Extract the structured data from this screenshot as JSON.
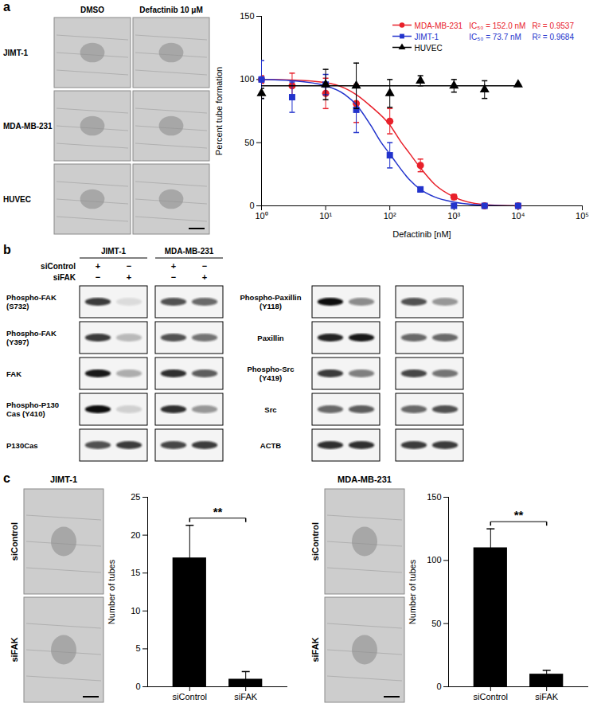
{
  "panel_a_images": {
    "panel": "a",
    "columns": [
      "DMSO",
      "Defactinib 10 μM"
    ],
    "rows": [
      "JIMT-1",
      "MDA-MB-231",
      "HUVEC"
    ]
  },
  "chart_data": [
    {
      "type": "line",
      "xlabel": "Defactinib [nM]",
      "ylabel": "Percent tube formation",
      "log": "x",
      "grid": false,
      "legend": "top-right",
      "xlim": [
        1,
        100000
      ],
      "xticks": [
        {
          "value": 1,
          "label": "10⁰"
        },
        {
          "value": 10,
          "label": "10¹"
        },
        {
          "value": 100,
          "label": "10²"
        },
        {
          "value": 1000,
          "label": "10³"
        },
        {
          "value": 10000,
          "label": "10⁴"
        },
        {
          "value": 100000,
          "label": "10⁵"
        }
      ],
      "ylim": [
        0,
        150
      ],
      "yticks": [
        0,
        50,
        100,
        150
      ],
      "series": [
        {
          "name": "MDA-MB-231",
          "color": "#e8202a",
          "marker": "circle",
          "annotation": [
            "IC₅₀ = 152.0 nM",
            "R² = 0.9537"
          ],
          "x": [
            1,
            3,
            10,
            30,
            100,
            300,
            1000,
            3000,
            10000
          ],
          "values": [
            100,
            95,
            89,
            81,
            67,
            32,
            7,
            0,
            0
          ],
          "error": [
            3,
            10,
            12,
            15,
            10,
            5,
            2,
            0,
            0
          ],
          "curve": {
            "x": [
              1,
              3,
              10,
              20,
              30,
              50,
              100,
              152,
              200,
              300,
              500,
              1000,
              3000,
              10000
            ],
            "values": [
              100,
              99.6,
              97.5,
              93,
              88,
              79,
              64,
              50,
              42,
              30,
              17,
              7,
              1,
              0
            ]
          }
        },
        {
          "name": "JIMT-1",
          "color": "#2233cc",
          "marker": "square",
          "annotation": [
            "IC₅₀ = 73.7 nM",
            "R² = 0.9684"
          ],
          "x": [
            1,
            3,
            10,
            30,
            100,
            300,
            1000,
            3000,
            10000
          ],
          "values": [
            100,
            86,
            96,
            76,
            40,
            13,
            0,
            0,
            0
          ],
          "error": [
            15,
            12,
            8,
            18,
            10,
            2,
            0,
            0,
            0
          ],
          "curve": {
            "x": [
              1,
              3,
              10,
              20,
              30,
              50,
              73.7,
              100,
              200,
              300,
              500,
              1000,
              3000,
              10000
            ],
            "values": [
              100,
              99,
              95,
              88,
              80,
              64,
              50,
              41,
              21,
              13,
              7,
              3,
              0.5,
              0
            ]
          }
        },
        {
          "name": "HUVEC",
          "color": "#000000",
          "marker": "triangle",
          "x": [
            1,
            10,
            30,
            100,
            300,
            1000,
            3000,
            10000
          ],
          "values": [
            89,
            96,
            95,
            89,
            99,
            95,
            92,
            96
          ],
          "error": [
            4,
            12,
            18,
            11,
            4,
            5,
            7,
            0
          ],
          "curve": {
            "x": [
              1,
              10000
            ],
            "values": [
              95,
              95
            ]
          }
        }
      ]
    },
    {
      "type": "bar",
      "categories": [
        "siControl",
        "siFAK"
      ],
      "values": [
        17,
        1
      ],
      "error": [
        4.3,
        1
      ],
      "color": "#000000",
      "ylabel": "Number of tubes",
      "ylim": [
        0,
        25
      ],
      "yticks": [
        0,
        5,
        10,
        15,
        20,
        25
      ],
      "grid": false,
      "significance": "**"
    },
    {
      "type": "bar",
      "categories": [
        "siControl",
        "siFAK"
      ],
      "values": [
        110,
        10
      ],
      "error": [
        15,
        3
      ],
      "color": "#000000",
      "ylabel": "Number of tubes",
      "ylim": [
        0,
        150
      ],
      "yticks": [
        0,
        50,
        100,
        150
      ],
      "grid": false,
      "significance": "**"
    }
  ],
  "panel_b_blots": {
    "panel": "b",
    "cell_lines": [
      "JIMT-1",
      "MDA-MB-231"
    ],
    "conditions": [
      {
        "name": "siControl",
        "marks": [
          "+",
          "−",
          "+",
          "−"
        ]
      },
      {
        "name": "siFAK",
        "marks": [
          "−",
          "+",
          "−",
          "+"
        ]
      }
    ],
    "left": [
      {
        "label": "Phospho-FAK (S732)",
        "intensity": [
          0.8,
          0.1,
          0.7,
          0.6
        ]
      },
      {
        "label": "Phospho-FAK (Y397)",
        "intensity": [
          0.8,
          0.25,
          0.7,
          0.55
        ]
      },
      {
        "label": "FAK",
        "intensity": [
          0.95,
          0.3,
          0.85,
          0.65
        ]
      },
      {
        "label": "Phospho-P130 Cas (Y410)",
        "intensity": [
          1.0,
          0.15,
          0.85,
          0.4
        ]
      },
      {
        "label": "P130Cas",
        "intensity": [
          0.7,
          0.8,
          0.75,
          0.8
        ]
      }
    ],
    "right": [
      {
        "label": "Phospho-Paxillin (Y118)",
        "intensity": [
          1.0,
          0.45,
          0.7,
          0.4
        ]
      },
      {
        "label": "Paxillin",
        "intensity": [
          0.9,
          0.95,
          0.6,
          0.6
        ]
      },
      {
        "label": "Phospho-Src (Y419)",
        "intensity": [
          0.8,
          0.5,
          0.75,
          0.55
        ]
      },
      {
        "label": "Src",
        "intensity": [
          0.6,
          0.65,
          0.6,
          0.7
        ]
      },
      {
        "label": "ACTB",
        "intensity": [
          0.85,
          0.85,
          0.8,
          0.8
        ]
      }
    ]
  },
  "panel_c_images": {
    "panel": "c",
    "groups": [
      {
        "title": "JIMT-1",
        "rows": [
          "siControl",
          "siFAK"
        ]
      },
      {
        "title": "MDA-MB-231",
        "rows": [
          "siControl",
          "siFAK"
        ]
      }
    ]
  }
}
